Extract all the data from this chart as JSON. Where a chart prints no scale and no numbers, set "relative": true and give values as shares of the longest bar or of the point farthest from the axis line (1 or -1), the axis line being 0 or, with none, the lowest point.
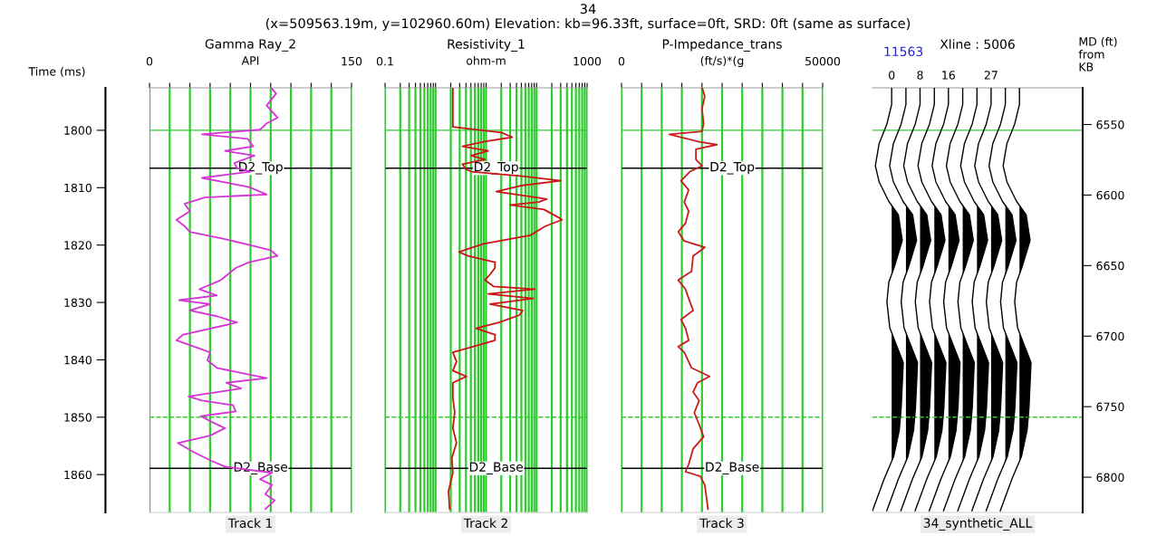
{
  "chart_data": [
    {
      "type": "line",
      "orientation": "horizontal",
      "title": "Gamma Ray_2",
      "xlabel": "API",
      "ylabel": "Time (ms)",
      "subtitle": "Track 1",
      "annotations": [
        "34",
        "(x=509563.19m, y=102960.60m) Elevation: kb=96.33ft, surface=0ft, SRD: 0ft (same as surface)"
      ],
      "xlim": [
        0,
        150
      ],
      "xticks": [
        0,
        {
          "value": 15,
          "label": null
        },
        {
          "value": 30,
          "label": null
        },
        {
          "value": 45,
          "label": null
        },
        {
          "value": 60,
          "label": null
        },
        {
          "value": 75,
          "label": null
        },
        {
          "value": 90,
          "label": null
        },
        {
          "value": 105,
          "label": null
        },
        {
          "value": 120,
          "label": null
        },
        {
          "value": 135,
          "label": null
        },
        150
      ],
      "ylim": [
        1866.6,
        1792.6
      ],
      "yticks": [
        1800,
        1810,
        1820,
        1830,
        1840,
        1850,
        1860
      ],
      "grid": "x",
      "line_style": "solid",
      "series": [
        {
          "color": "#d632d6",
          "x": [
            1792.5,
            1793.6,
            1795.7,
            1797.8,
            1798.8,
            1799.9,
            1800.7,
            1801.5,
            1802.8,
            1803.6,
            1804.4,
            1805.7,
            1806.6,
            1807.2,
            1808.3,
            1809.9,
            1811.2,
            1811.7,
            1812.8,
            1814.1,
            1815.6,
            1816.7,
            1817.7,
            1818.8,
            1819.8,
            1820.9,
            1821.9,
            1823.0,
            1824.0,
            1826.1,
            1827.7,
            1828.8,
            1829.6,
            1830.3,
            1831.4,
            1832.4,
            1833.5,
            1835.6,
            1836.6,
            1838.7,
            1840.1,
            1841.4,
            1842.7,
            1843.2,
            1844.0,
            1845.0,
            1846.4,
            1847.1,
            1847.9,
            1849.0,
            1849.8,
            1850.8,
            1851.9,
            1853.2,
            1854.5,
            1856.1,
            1857.6,
            1858.6,
            1859.7,
            1860.8,
            1861.8,
            1863.4,
            1864.5,
            1866.0
          ],
          "values": [
            90,
            94,
            87,
            95,
            87,
            82,
            39,
            73,
            77,
            56,
            78,
            63,
            65,
            75,
            39,
            74,
            87,
            41,
            26,
            30,
            20,
            26,
            30,
            53,
            71,
            90,
            95,
            74,
            64,
            53,
            37,
            50,
            22,
            45,
            30,
            50,
            65,
            25,
            20,
            45,
            43,
            50,
            77,
            87,
            57,
            68,
            29,
            39,
            62,
            64,
            38,
            46,
            56,
            45,
            21,
            33,
            46,
            56,
            91,
            82,
            91,
            86,
            93,
            86
          ]
        }
      ],
      "ref_lines": [
        {
          "axis": "y",
          "value": 1800,
          "color": "#33cc33",
          "line_style": "solid"
        },
        {
          "axis": "y",
          "value": 1850,
          "color": "#33cc33",
          "line_style": "dashed"
        },
        {
          "axis": "y",
          "value": 1806.6,
          "label": "D2_Top",
          "color": "#000000",
          "line_style": "solid"
        },
        {
          "axis": "y",
          "value": 1858.9,
          "label": "D2_Base",
          "color": "#000000",
          "line_style": "solid"
        }
      ]
    },
    {
      "type": "line",
      "orientation": "horizontal",
      "title": "Resistivity_1",
      "xlabel": "ohm-m",
      "subtitle": "Track 2",
      "log": "x",
      "xlim": [
        0.1,
        1000
      ],
      "xticks": [
        0.1,
        {
          "value": 0.2,
          "label": null
        },
        {
          "value": 0.3,
          "label": null
        },
        {
          "value": 0.4,
          "label": null
        },
        {
          "value": 0.5,
          "label": null
        },
        {
          "value": 0.6,
          "label": null
        },
        {
          "value": 0.7,
          "label": null
        },
        {
          "value": 0.8,
          "label": null
        },
        {
          "value": 0.9,
          "label": null
        },
        {
          "value": 1,
          "label": null
        },
        {
          "value": 2,
          "label": null
        },
        {
          "value": 3,
          "label": null
        },
        {
          "value": 4,
          "label": null
        },
        {
          "value": 5,
          "label": null
        },
        {
          "value": 6,
          "label": null
        },
        {
          "value": 7,
          "label": null
        },
        {
          "value": 8,
          "label": null
        },
        {
          "value": 9,
          "label": null
        },
        {
          "value": 10,
          "label": null
        },
        {
          "value": 20,
          "label": null
        },
        {
          "value": 30,
          "label": null
        },
        {
          "value": 40,
          "label": null
        },
        {
          "value": 50,
          "label": null
        },
        {
          "value": 60,
          "label": null
        },
        {
          "value": 70,
          "label": null
        },
        {
          "value": 80,
          "label": null
        },
        {
          "value": 90,
          "label": null
        },
        {
          "value": 100,
          "label": null
        },
        {
          "value": 200,
          "label": null
        },
        {
          "value": 300,
          "label": null
        },
        {
          "value": 400,
          "label": null
        },
        {
          "value": 500,
          "label": null
        },
        {
          "value": 600,
          "label": null
        },
        {
          "value": 700,
          "label": null
        },
        {
          "value": 800,
          "label": null
        },
        {
          "value": 900,
          "label": null
        },
        1000
      ],
      "ylim": [
        1866.6,
        1792.6
      ],
      "tick_labels": "x",
      "grid": "x",
      "line_style": "solid",
      "series": [
        {
          "color": "#cc1414",
          "x": [
            1792.5,
            1799.4,
            1800.4,
            1801.2,
            1802.0,
            1802.8,
            1803.6,
            1804.4,
            1805.1,
            1805.9,
            1806.7,
            1807.2,
            1808.0,
            1808.8,
            1809.6,
            1810.7,
            1811.2,
            1812.0,
            1812.5,
            1813.0,
            1813.8,
            1815.1,
            1815.6,
            1816.7,
            1818.3,
            1819.8,
            1821.2,
            1821.9,
            1823.0,
            1824.0,
            1825.1,
            1826.1,
            1827.2,
            1827.7,
            1828.5,
            1829.3,
            1830.3,
            1831.4,
            1832.2,
            1833.5,
            1834.5,
            1835.6,
            1836.6,
            1837.7,
            1838.7,
            1840.3,
            1841.9,
            1842.9,
            1844.0,
            1846.6,
            1849.2,
            1851.9,
            1854.5,
            1857.1,
            1859.7,
            1862.9,
            1866.0
          ],
          "values": [
            2.2,
            2.2,
            20,
            33,
            8.8,
            3.4,
            11,
            5.1,
            9.5,
            3.4,
            3.9,
            5.1,
            53,
            300,
            53,
            16,
            40,
            160,
            110,
            30,
            140,
            260,
            320,
            150,
            75,
            8.8,
            2.9,
            4.4,
            15,
            15,
            12,
            9.5,
            14,
            92,
            11,
            86,
            12,
            53,
            46,
            18,
            6.3,
            15,
            15,
            5.5,
            2.2,
            2.6,
            2.2,
            4.1,
            2.2,
            2.2,
            2.4,
            2.2,
            2.6,
            2.1,
            2.2,
            1.8,
            1.9
          ]
        }
      ],
      "ref_lines": [
        {
          "axis": "y",
          "value": 1800,
          "color": "#33cc33",
          "line_style": "solid"
        },
        {
          "axis": "y",
          "value": 1850,
          "color": "#33cc33",
          "line_style": "dashed"
        },
        {
          "axis": "y",
          "value": 1806.6,
          "label": "D2_Top",
          "color": "#000000",
          "line_style": "solid"
        },
        {
          "axis": "y",
          "value": 1858.9,
          "label": "D2_Base",
          "color": "#000000",
          "line_style": "solid"
        }
      ]
    },
    {
      "type": "line",
      "orientation": "horizontal",
      "title": "P-Impedance_trans",
      "xlabel": "(ft/s)*(g",
      "subtitle": "Track 3",
      "xlim": [
        0,
        50000
      ],
      "xticks": [
        0,
        {
          "value": 5000,
          "label": null
        },
        {
          "value": 10000,
          "label": null
        },
        {
          "value": 15000,
          "label": null
        },
        {
          "value": 20000,
          "label": null
        },
        {
          "value": 25000,
          "label": null
        },
        {
          "value": 30000,
          "label": null
        },
        {
          "value": 35000,
          "label": null
        },
        {
          "value": 40000,
          "label": null
        },
        {
          "value": 45000,
          "label": null
        },
        50000
      ],
      "ylim": [
        1866.6,
        1792.6
      ],
      "tick_labels": "x",
      "grid": "x",
      "line_style": "solid",
      "series": [
        {
          "color": "#c41e1e",
          "x": [
            1792.5,
            1794.1,
            1796.2,
            1798.8,
            1800.2,
            1800.7,
            1801.2,
            1802.0,
            1802.5,
            1803.3,
            1805.1,
            1806.2,
            1807.2,
            1808.8,
            1810.4,
            1812.5,
            1814.1,
            1816.2,
            1817.7,
            1819.3,
            1820.4,
            1821.9,
            1824.6,
            1826.1,
            1827.7,
            1829.3,
            1831.4,
            1833.0,
            1834.5,
            1836.6,
            1837.7,
            1838.7,
            1841.4,
            1842.9,
            1844.0,
            1845.6,
            1847.1,
            1849.2,
            1851.3,
            1853.4,
            1855.5,
            1858.2,
            1859.5,
            1860.3,
            1861.8,
            1863.9,
            1866.0
          ],
          "values": [
            20000,
            20700,
            20000,
            20400,
            20000,
            11900,
            14800,
            19300,
            23700,
            18500,
            18500,
            20000,
            17000,
            14800,
            16700,
            15600,
            16700,
            15900,
            14100,
            15600,
            20700,
            17800,
            17400,
            14100,
            15900,
            16700,
            17800,
            14800,
            15900,
            16700,
            14100,
            15600,
            17400,
            21900,
            18900,
            17800,
            19300,
            18100,
            19300,
            20400,
            17800,
            16700,
            15900,
            19600,
            20700,
            21100,
            21500
          ]
        }
      ],
      "ref_lines": [
        {
          "axis": "y",
          "value": 1800,
          "color": "#33cc33",
          "line_style": "solid"
        },
        {
          "axis": "y",
          "value": 1850,
          "color": "#33cc33",
          "line_style": "dashed"
        },
        {
          "axis": "y",
          "value": 1806.6,
          "label": "D2_Top",
          "color": "#000000",
          "line_style": "solid"
        },
        {
          "axis": "y",
          "value": 1858.9,
          "label": "D2_Base",
          "color": "#000000",
          "line_style": "solid"
        }
      ]
    },
    {
      "type": "line",
      "relative": true,
      "orientation": "horizontal",
      "title": "Xline : 5006",
      "subtitle": "34_synthetic_ALL",
      "annotations": [
        "11563"
      ],
      "y2label": "MD (ft)\nfrom\nKB",
      "ylim": [
        1866.6,
        1792.6
      ],
      "y2lim": [
        6825,
        6524
      ],
      "y2ticks": [
        6550,
        6600,
        6650,
        6700,
        6750,
        6800
      ],
      "line_style": "solid",
      "series": [
        {
          "name": "0",
          "color": "#000000",
          "x": [
            1792.7,
            1795.5,
            1798.9,
            1802.3,
            1806.2,
            1809.0,
            1812.4,
            1814.7,
            1819.2,
            1823.7,
            1826.5,
            1829.9,
            1834.4,
            1836.6,
            1840.5,
            1848.4,
            1852.3,
            1856.9,
            1860.8,
            1866.3
          ],
          "values": [
            0.121,
            0.121,
            0.091,
            0.042,
            0.018,
            0.042,
            0.103,
            0.163,
            0.188,
            0.139,
            0.103,
            0.091,
            0.109,
            0.139,
            0.194,
            0.181,
            0.169,
            0.133,
            0.073,
            0.0
          ]
        },
        {
          "color": "#000000",
          "x": [
            1792.7,
            1795.5,
            1798.9,
            1802.3,
            1806.2,
            1809.0,
            1812.4,
            1814.7,
            1819.2,
            1823.7,
            1826.5,
            1829.9,
            1834.4,
            1836.6,
            1840.5,
            1848.4,
            1852.3,
            1856.9,
            1860.8,
            1866.3
          ],
          "values": [
            0.211,
            0.211,
            0.181,
            0.132,
            0.108,
            0.132,
            0.193,
            0.253,
            0.278,
            0.229,
            0.193,
            0.181,
            0.199,
            0.229,
            0.284,
            0.271,
            0.259,
            0.223,
            0.163,
            0.09
          ]
        },
        {
          "name": "8",
          "color": "#000000",
          "x": [
            1792.7,
            1795.5,
            1798.9,
            1802.3,
            1806.2,
            1809.0,
            1812.4,
            1814.7,
            1819.2,
            1823.7,
            1826.5,
            1829.9,
            1834.4,
            1836.6,
            1840.5,
            1848.4,
            1852.3,
            1856.9,
            1860.8,
            1866.3
          ],
          "values": [
            0.3,
            0.3,
            0.27,
            0.221,
            0.197,
            0.221,
            0.282,
            0.342,
            0.367,
            0.318,
            0.282,
            0.27,
            0.288,
            0.318,
            0.373,
            0.36,
            0.348,
            0.312,
            0.252,
            0.179
          ]
        },
        {
          "color": "#000000",
          "x": [
            1792.7,
            1795.5,
            1798.9,
            1802.3,
            1806.2,
            1809.0,
            1812.4,
            1814.7,
            1819.2,
            1823.7,
            1826.5,
            1829.9,
            1834.4,
            1836.6,
            1840.5,
            1848.4,
            1852.3,
            1856.9,
            1860.8,
            1866.3
          ],
          "values": [
            0.39,
            0.39,
            0.36,
            0.311,
            0.287,
            0.311,
            0.372,
            0.432,
            0.457,
            0.408,
            0.372,
            0.36,
            0.378,
            0.408,
            0.463,
            0.45,
            0.438,
            0.402,
            0.342,
            0.269
          ]
        },
        {
          "name": "16",
          "color": "#000000",
          "x": [
            1792.7,
            1795.5,
            1798.9,
            1802.3,
            1806.2,
            1809.0,
            1812.4,
            1814.7,
            1819.2,
            1823.7,
            1826.5,
            1829.9,
            1834.4,
            1836.6,
            1840.5,
            1848.4,
            1852.3,
            1856.9,
            1860.8,
            1866.3
          ],
          "values": [
            0.479,
            0.479,
            0.449,
            0.4,
            0.376,
            0.4,
            0.461,
            0.521,
            0.546,
            0.497,
            0.461,
            0.449,
            0.467,
            0.497,
            0.552,
            0.539,
            0.527,
            0.491,
            0.431,
            0.358
          ]
        },
        {
          "color": "#000000",
          "x": [
            1792.7,
            1795.5,
            1798.9,
            1802.3,
            1806.2,
            1809.0,
            1812.4,
            1814.7,
            1819.2,
            1823.7,
            1826.5,
            1829.9,
            1834.4,
            1836.6,
            1840.5,
            1848.4,
            1852.3,
            1856.9,
            1860.8,
            1866.3
          ],
          "values": [
            0.569,
            0.569,
            0.539,
            0.49,
            0.466,
            0.49,
            0.551,
            0.611,
            0.636,
            0.587,
            0.551,
            0.539,
            0.557,
            0.587,
            0.642,
            0.629,
            0.617,
            0.581,
            0.521,
            0.448
          ]
        },
        {
          "color": "#000000",
          "x": [
            1792.7,
            1795.5,
            1798.9,
            1802.3,
            1806.2,
            1809.0,
            1812.4,
            1814.7,
            1819.2,
            1823.7,
            1826.5,
            1829.9,
            1834.4,
            1836.6,
            1840.5,
            1848.4,
            1852.3,
            1856.9,
            1860.8,
            1866.3
          ],
          "values": [
            0.659,
            0.659,
            0.629,
            0.58,
            0.556,
            0.58,
            0.641,
            0.701,
            0.726,
            0.677,
            0.641,
            0.629,
            0.647,
            0.677,
            0.732,
            0.719,
            0.707,
            0.671,
            0.611,
            0.538
          ]
        },
        {
          "name": "27",
          "color": "#000000",
          "x": [
            1792.7,
            1795.5,
            1798.9,
            1802.3,
            1806.2,
            1809.0,
            1812.4,
            1814.7,
            1819.2,
            1823.7,
            1826.5,
            1829.9,
            1834.4,
            1836.6,
            1840.5,
            1848.4,
            1852.3,
            1856.9,
            1860.8,
            1866.3
          ],
          "values": [
            0.748,
            0.748,
            0.718,
            0.669,
            0.645,
            0.669,
            0.73,
            0.79,
            0.815,
            0.766,
            0.73,
            0.718,
            0.736,
            0.766,
            0.821,
            0.808,
            0.796,
            0.76,
            0.7,
            0.627
          ]
        },
        {
          "color": "#000000",
          "x": [
            1792.7,
            1795.5,
            1798.9,
            1802.3,
            1806.2,
            1809.0,
            1812.4,
            1814.7,
            1819.2,
            1823.7,
            1826.5,
            1829.9,
            1834.4,
            1836.6,
            1840.5,
            1848.4,
            1852.3,
            1856.9,
            1860.8,
            1866.3
          ],
          "values": [
            0.838,
            0.838,
            0.808,
            0.759,
            0.735,
            0.759,
            0.82,
            0.88,
            0.905,
            0.856,
            0.82,
            0.808,
            0.826,
            0.856,
            0.911,
            0.898,
            0.886,
            0.85,
            0.79,
            0.717
          ]
        },
        {
          "color": "#000000",
          "x": [
            1792.7,
            1795.5,
            1798.9,
            1802.3,
            1806.2,
            1809.0,
            1812.4,
            1814.7,
            1819.2,
            1823.7,
            1826.5,
            1829.9,
            1834.4,
            1836.6,
            1840.5,
            1848.4,
            1852.3,
            1856.9,
            1860.8,
            1866.3
          ],
          "values": [
            0.927,
            0.927,
            0.897,
            0.848,
            0.824,
            0.848,
            0.909,
            0.969,
            0.994,
            0.945,
            0.909,
            0.897,
            0.915,
            0.945,
            1.0,
            0.987,
            0.975,
            0.939,
            0.879,
            0.806
          ]
        }
      ],
      "ref_lines": [
        {
          "axis": "y",
          "value": 1800,
          "color": "#33cc33",
          "line_style": "solid"
        },
        {
          "axis": "y",
          "value": 1850,
          "color": "#33cc33",
          "line_style": "dashed"
        }
      ]
    }
  ]
}
